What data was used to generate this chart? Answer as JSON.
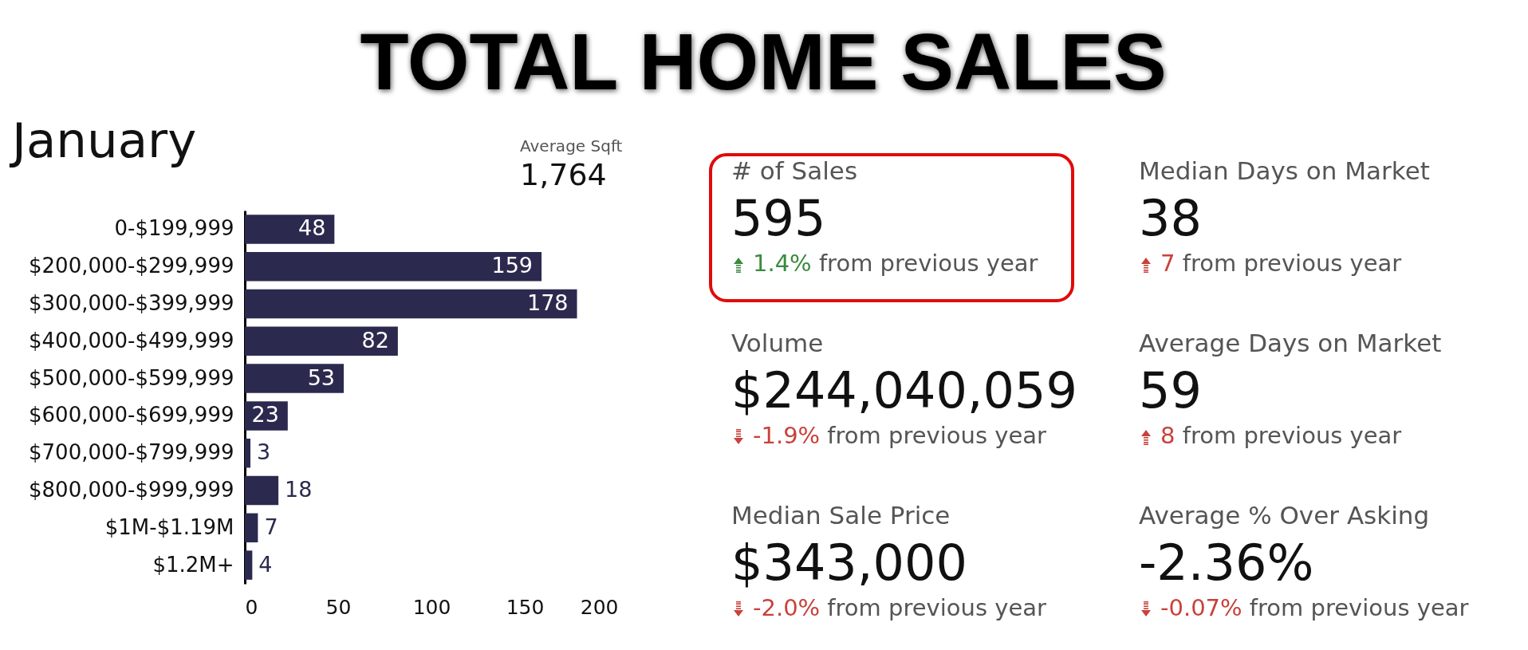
{
  "chart_data": [
    {
      "type": "bar",
      "title": "TOTAL HOME SALES",
      "subtitle": "January",
      "orientation": "horizontal",
      "categories": [
        "0-$199,999",
        "$200,000-$299,999",
        "$300,000-$399,999",
        "$400,000-$499,999",
        "$500,000-$599,999",
        "$600,000-$699,999",
        "$700,000-$799,999",
        "$800,000-$999,999",
        "$1M-$1.19M",
        "$1.2M+"
      ],
      "values": [
        48,
        159,
        178,
        82,
        53,
        23,
        3,
        18,
        7,
        4
      ],
      "color": "#2b2a4e",
      "xlim": [
        0,
        200
      ],
      "xticks": [
        0,
        50,
        100,
        150,
        200
      ],
      "data_labels": true,
      "annotations": [
        "Average Sqft",
        "1,764"
      ]
    },
    {
      "type": "other",
      "annotations": [
        "# of Sales",
        "595",
        "1.4%",
        "from previous year",
        "Median Days on Market",
        "38",
        "7",
        "from previous year",
        "Volume",
        "$244,040,059",
        "-1.9%",
        "from previous year",
        "Average Days on Market",
        "59",
        "8",
        "from previous year",
        "Median Sale Price",
        "$343,000",
        "-2.0%",
        "from previous year",
        "Average % Over Asking",
        "-2.36%",
        "-0.07%",
        "from previous year"
      ],
      "colors": [
        "#3a8a3e",
        "#c9413b",
        "#c9413b",
        "#c9413b",
        "#c9413b",
        "#c9413b"
      ]
    }
  ]
}
